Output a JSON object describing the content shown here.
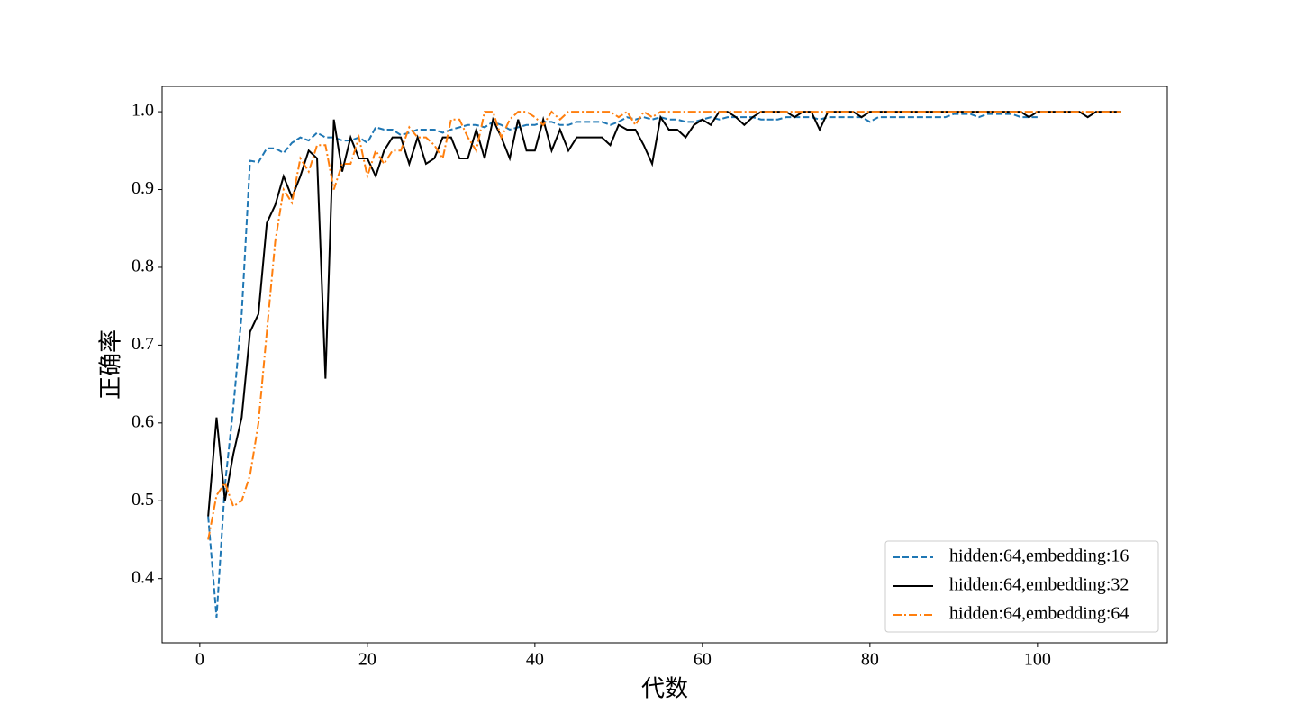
{
  "chart_data": {
    "type": "line",
    "xlabel": "代数",
    "ylabel": "正确率",
    "x": [
      1,
      2,
      3,
      4,
      5,
      6,
      7,
      8,
      9,
      10,
      11,
      12,
      13,
      14,
      15,
      16,
      17,
      18,
      19,
      20,
      21,
      22,
      23,
      24,
      25,
      26,
      27,
      28,
      29,
      30,
      31,
      32,
      33,
      34,
      35,
      36,
      37,
      38,
      39,
      40,
      41,
      42,
      43,
      44,
      45,
      46,
      47,
      48,
      49,
      50,
      51,
      52,
      53,
      54,
      55,
      56,
      57,
      58,
      59,
      60,
      61,
      62,
      63,
      64,
      65,
      66,
      67,
      68,
      69,
      70,
      71,
      72,
      73,
      74,
      75,
      76,
      77,
      78,
      79,
      80,
      81,
      82,
      83,
      84,
      85,
      86,
      87,
      88,
      89,
      90,
      91,
      92,
      93,
      94,
      95,
      96,
      97,
      98,
      99,
      100,
      101,
      102,
      103,
      104,
      105,
      106,
      107,
      108,
      109,
      110
    ],
    "series": [
      {
        "name": "hidden:64,embedding:16",
        "color": "#1f77b4",
        "linestyle": "dashed",
        "values": [
          0.48,
          0.35,
          0.52,
          0.62,
          0.74,
          0.937,
          0.935,
          0.953,
          0.953,
          0.947,
          0.96,
          0.967,
          0.963,
          0.973,
          0.967,
          0.967,
          0.963,
          0.963,
          0.967,
          0.96,
          0.98,
          0.977,
          0.977,
          0.97,
          0.973,
          0.977,
          0.977,
          0.977,
          0.973,
          0.977,
          0.98,
          0.983,
          0.983,
          0.98,
          0.987,
          0.983,
          0.977,
          0.98,
          0.983,
          0.983,
          0.987,
          0.987,
          0.983,
          0.983,
          0.987,
          0.987,
          0.987,
          0.987,
          0.983,
          0.987,
          0.993,
          0.99,
          0.993,
          0.99,
          0.993,
          0.99,
          0.99,
          0.987,
          0.987,
          0.99,
          0.993,
          0.99,
          0.993,
          0.993,
          0.993,
          0.993,
          0.99,
          0.99,
          0.99,
          0.993,
          0.993,
          0.993,
          0.993,
          0.99,
          0.993,
          0.993,
          0.993,
          0.993,
          0.993,
          0.987,
          0.993,
          0.993,
          0.993,
          0.993,
          0.993,
          0.993,
          0.993,
          0.993,
          0.993,
          0.997,
          0.997,
          0.997,
          0.993,
          0.997,
          0.997,
          0.997,
          0.997,
          0.993,
          0.993,
          0.993,
          null,
          null,
          null,
          null,
          null,
          null,
          null,
          null,
          null,
          null
        ]
      },
      {
        "name": "hidden:64,embedding:32",
        "color": "#000000",
        "linestyle": "solid",
        "values": [
          0.48,
          0.607,
          0.5,
          0.56,
          0.607,
          0.717,
          0.74,
          0.857,
          0.88,
          0.917,
          0.89,
          0.917,
          0.95,
          0.94,
          0.657,
          0.99,
          0.923,
          0.967,
          0.94,
          0.94,
          0.917,
          0.95,
          0.967,
          0.967,
          0.933,
          0.967,
          0.933,
          0.94,
          0.967,
          0.967,
          0.94,
          0.94,
          0.977,
          0.94,
          0.99,
          0.967,
          0.94,
          0.99,
          0.95,
          0.95,
          0.99,
          0.95,
          0.977,
          0.95,
          0.967,
          0.967,
          0.967,
          0.967,
          0.957,
          0.983,
          0.977,
          0.977,
          0.957,
          0.933,
          0.993,
          0.977,
          0.977,
          0.967,
          0.983,
          0.99,
          0.983,
          1,
          1,
          0.993,
          0.983,
          0.993,
          1,
          1,
          1,
          1,
          0.993,
          1,
          1,
          0.977,
          1,
          1,
          1,
          1,
          0.993,
          1,
          1,
          1,
          1,
          1,
          1,
          1,
          1,
          1,
          1,
          1,
          1,
          1,
          1,
          1,
          1,
          1,
          1,
          1,
          0.993,
          1,
          1,
          1,
          1,
          1,
          1,
          0.993,
          1,
          1,
          1,
          1
        ]
      },
      {
        "name": "hidden:64,embedding:64",
        "color": "#ff7f0e",
        "linestyle": "dashdot",
        "values": [
          0.45,
          0.507,
          0.523,
          0.493,
          0.5,
          0.533,
          0.6,
          0.717,
          0.833,
          0.9,
          0.883,
          0.94,
          0.923,
          0.957,
          0.957,
          0.9,
          0.933,
          0.933,
          0.967,
          0.917,
          0.95,
          0.933,
          0.95,
          0.95,
          0.98,
          0.967,
          0.967,
          0.957,
          0.94,
          0.99,
          0.99,
          0.967,
          0.95,
          1,
          1,
          0.967,
          0.99,
          1,
          1,
          0.993,
          0.983,
          1,
          0.99,
          1,
          1,
          1,
          1,
          1,
          1,
          0.993,
          1,
          0.983,
          1,
          0.993,
          1,
          1,
          1,
          1,
          1,
          1,
          1,
          1,
          1,
          1,
          1,
          1,
          1,
          1,
          1,
          1,
          1,
          1,
          1,
          1,
          1,
          1,
          1,
          1,
          1,
          1,
          1,
          1,
          1,
          1,
          1,
          1,
          1,
          1,
          1,
          1,
          1,
          1,
          1,
          1,
          1,
          1,
          1,
          1,
          1,
          1,
          1,
          1,
          1,
          1,
          1,
          1,
          1,
          1,
          1,
          1
        ]
      }
    ],
    "xlim": [
      -4.5,
      115.5
    ],
    "ylim": [
      0.3175,
      1.0325
    ],
    "xticks": [
      0,
      20,
      40,
      60,
      80,
      100
    ],
    "yticks": [
      0.4,
      0.5,
      0.6,
      0.7,
      0.8,
      0.9,
      {
        "value": 1,
        "label": "1.0"
      }
    ],
    "legend": "lower right"
  }
}
